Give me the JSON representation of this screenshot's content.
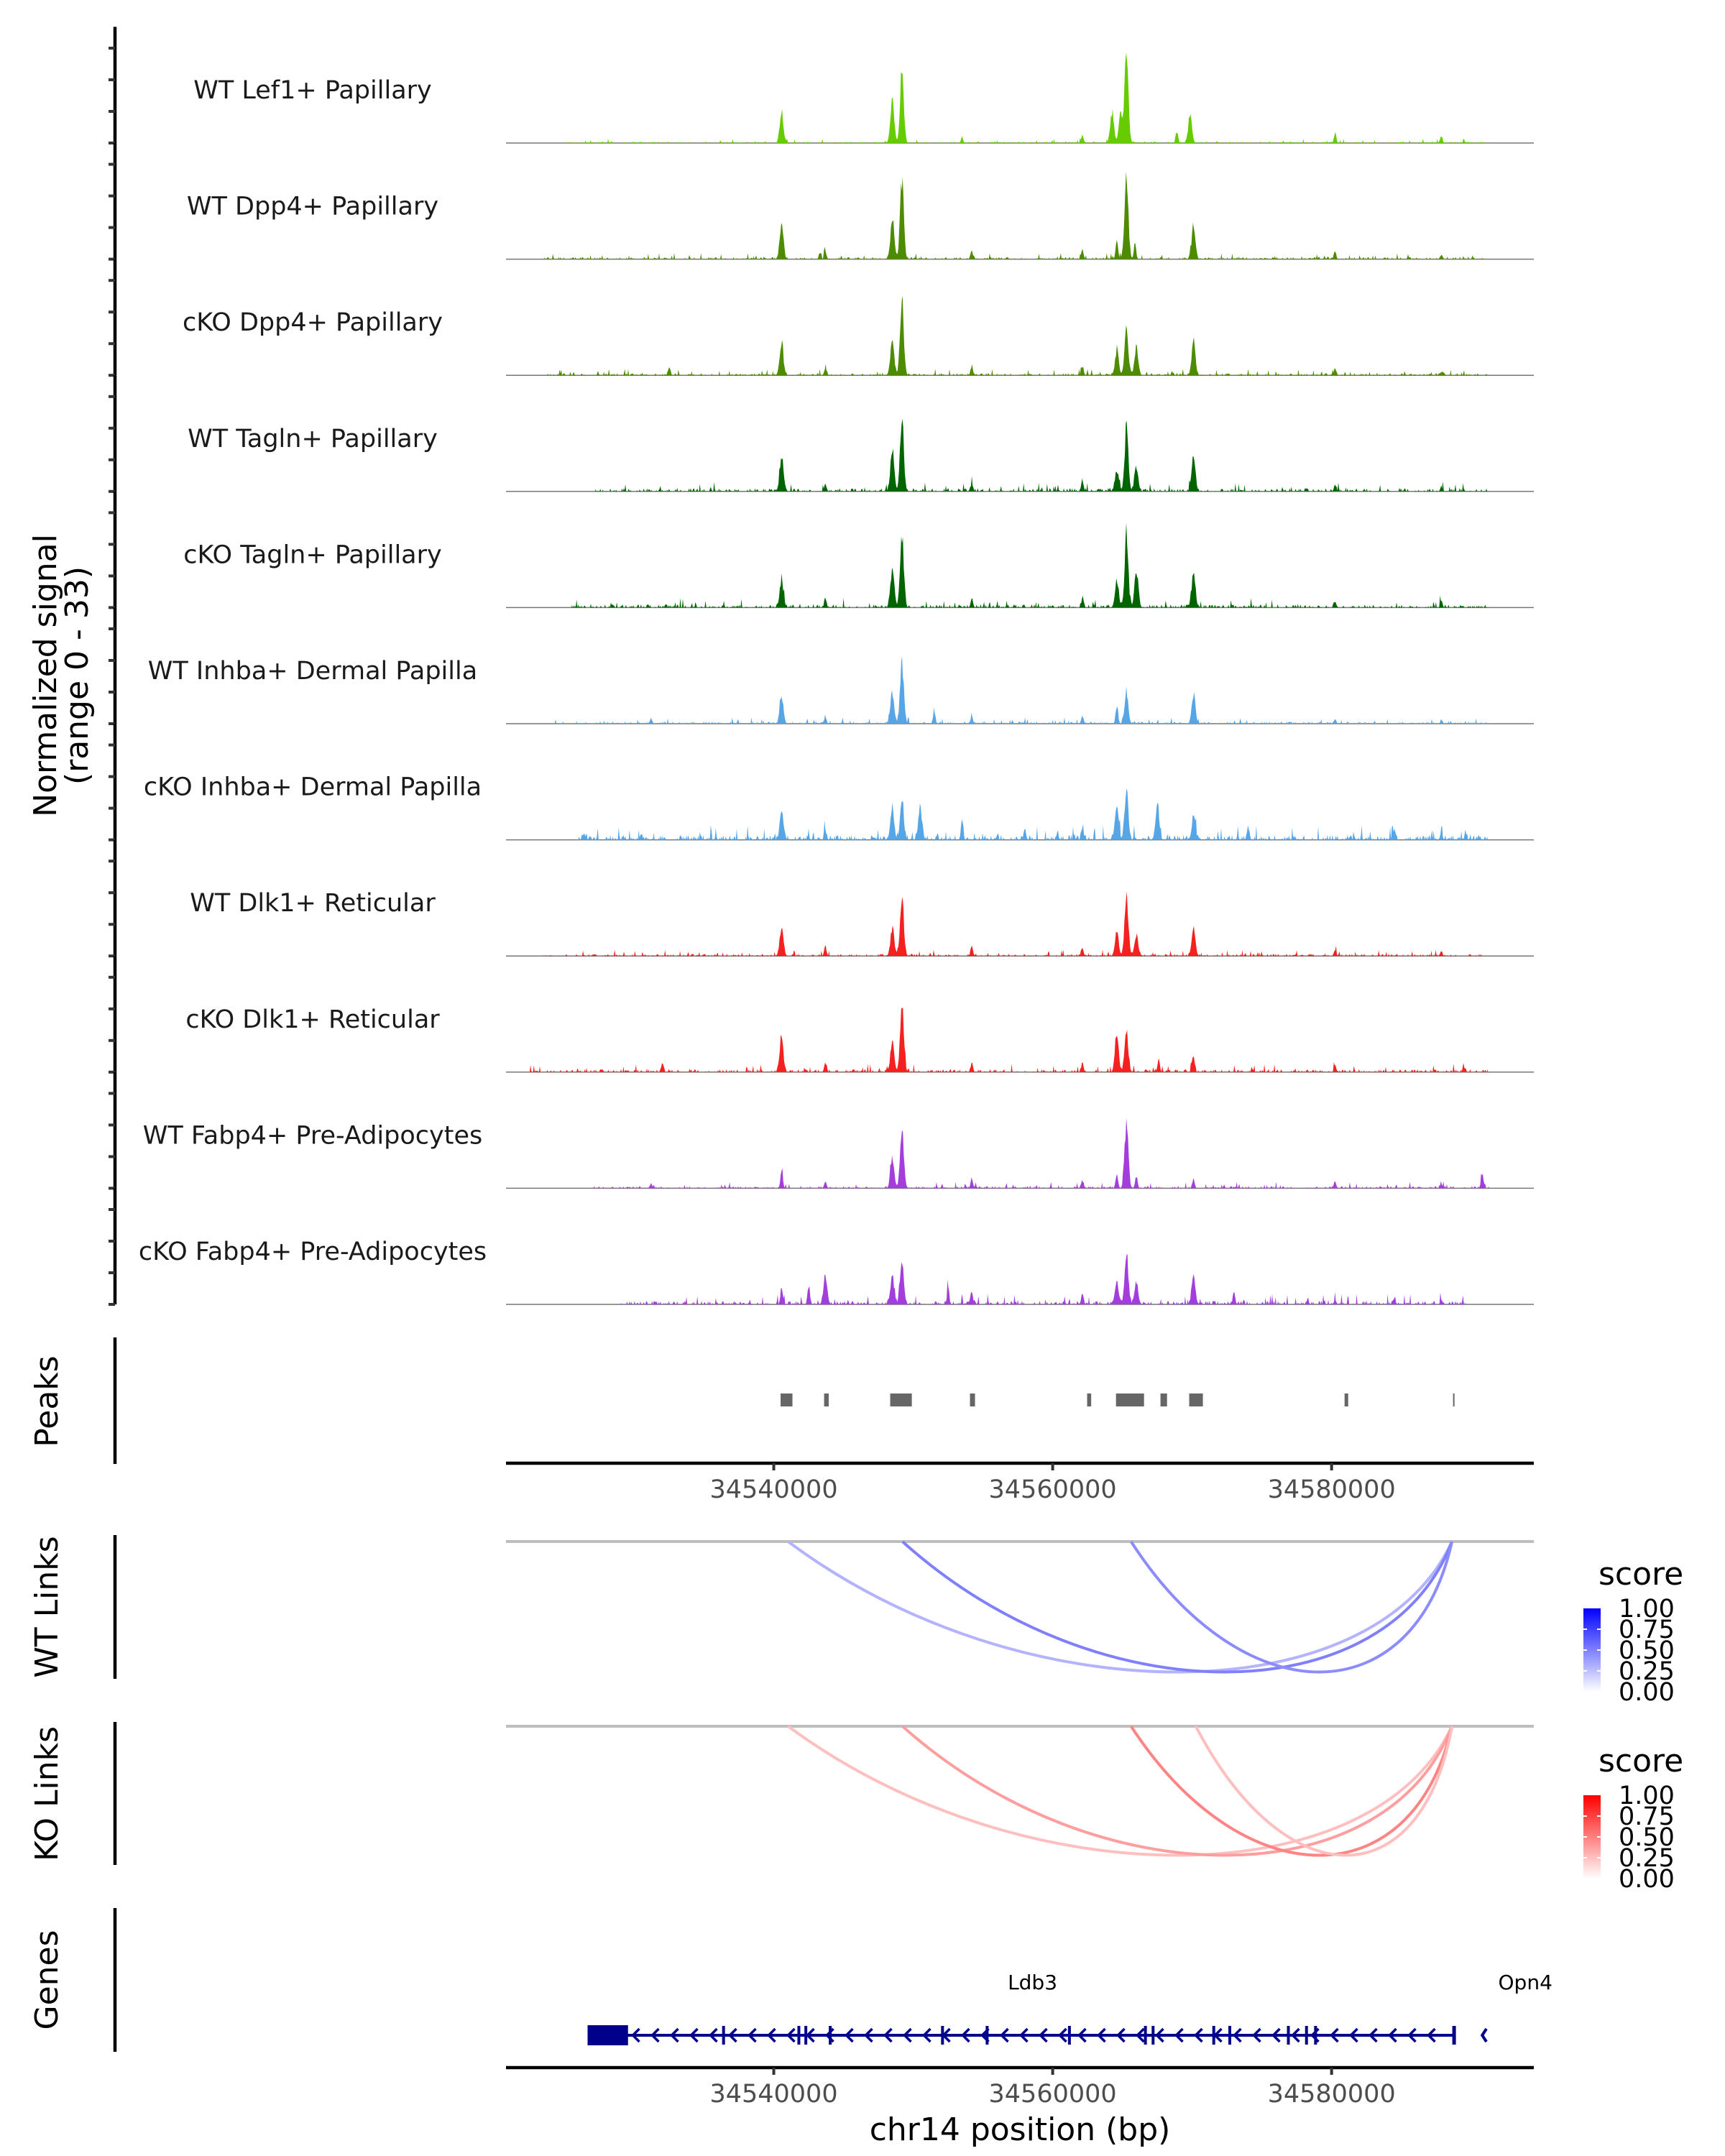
{
  "chart_data": {
    "type": "area",
    "title": "",
    "chromosome": "chr14",
    "xlabel": "chr14 position (bp)",
    "xlim": [
      34520800,
      34594500
    ],
    "x_ticks": [
      34540000,
      34560000,
      34580000
    ],
    "x_tick_labels": [
      "34540000",
      "34560000",
      "34580000"
    ],
    "signal_panel": {
      "ylabel_line1": "Normalized signal",
      "ylabel_line2": "(range 0 - 33)",
      "ylim": [
        0,
        33
      ],
      "tracks": [
        {
          "name": "WT Lef1+ Papillary",
          "color": "#66CC00",
          "peaks": [
            [
              34540560,
              10.5
            ],
            [
              34548500,
              14.4
            ],
            [
              34549190,
              23
            ],
            [
              34553500,
              1.5
            ],
            [
              34562130,
              2.5
            ],
            [
              34564260,
              9.9
            ],
            [
              34564870,
              9.1
            ],
            [
              34565290,
              29.7
            ],
            [
              34568900,
              3.5
            ],
            [
              34569850,
              8.7
            ],
            [
              34580250,
              3.1
            ],
            [
              34587870,
              1.9
            ]
          ],
          "background": 0.4,
          "data_range": [
            34525000,
            34591200
          ]
        },
        {
          "name": "WT Dpp4+ Papillary",
          "color": "#4D8C00",
          "peaks": [
            [
              34540560,
              12
            ],
            [
              34543700,
              2.5
            ],
            [
              34548500,
              13
            ],
            [
              34549190,
              26
            ],
            [
              34554200,
              2.5
            ],
            [
              34562130,
              3
            ],
            [
              34564600,
              6
            ],
            [
              34565290,
              27
            ],
            [
              34565900,
              5
            ],
            [
              34570100,
              11
            ],
            [
              34580250,
              2
            ],
            [
              34587870,
              1.5
            ]
          ],
          "background": 0.6,
          "data_range": [
            34523500,
            34591200
          ]
        },
        {
          "name": "cKO Dpp4+ Papillary",
          "color": "#4D8C00",
          "peaks": [
            [
              34532500,
              2.5
            ],
            [
              34540560,
              10
            ],
            [
              34543700,
              2.5
            ],
            [
              34548500,
              12
            ],
            [
              34549190,
              24
            ],
            [
              34554200,
              3
            ],
            [
              34562130,
              3
            ],
            [
              34564600,
              8
            ],
            [
              34565290,
              16
            ],
            [
              34566000,
              9
            ],
            [
              34570100,
              11
            ],
            [
              34580250,
              2
            ],
            [
              34587870,
              1
            ]
          ],
          "background": 0.6,
          "data_range": [
            34523500,
            34591200
          ]
        },
        {
          "name": "WT Tagln+ Papillary",
          "color": "#006400",
          "peaks": [
            [
              34540560,
              12
            ],
            [
              34543700,
              2.5
            ],
            [
              34548500,
              14
            ],
            [
              34549190,
              24
            ],
            [
              34554200,
              2.5
            ],
            [
              34562130,
              3.5
            ],
            [
              34564600,
              7
            ],
            [
              34565290,
              20
            ],
            [
              34566000,
              8
            ],
            [
              34570100,
              11
            ],
            [
              34580250,
              2
            ],
            [
              34587870,
              1.2
            ]
          ],
          "background": 0.9,
          "data_range": [
            34527200,
            34591200
          ]
        },
        {
          "name": "cKO Tagln+ Papillary",
          "color": "#006400",
          "peaks": [
            [
              34540560,
              9
            ],
            [
              34543700,
              2.5
            ],
            [
              34548500,
              12
            ],
            [
              34549190,
              24
            ],
            [
              34554200,
              3
            ],
            [
              34562130,
              3
            ],
            [
              34564600,
              9
            ],
            [
              34565290,
              23
            ],
            [
              34566000,
              12
            ],
            [
              34570100,
              11
            ],
            [
              34580250,
              2
            ],
            [
              34587870,
              1.5
            ]
          ],
          "background": 0.9,
          "data_range": [
            34525500,
            34591200
          ]
        },
        {
          "name": "WT Inhba+ Dermal Papilla",
          "color": "#56A5E6",
          "peaks": [
            [
              34531200,
              1.5
            ],
            [
              34540560,
              9
            ],
            [
              34543700,
              2
            ],
            [
              34548500,
              10
            ],
            [
              34549190,
              20
            ],
            [
              34551500,
              4
            ],
            [
              34554200,
              2.5
            ],
            [
              34562130,
              2.5
            ],
            [
              34564600,
              6
            ],
            [
              34565290,
              10
            ],
            [
              34570100,
              9
            ],
            [
              34580250,
              1.5
            ],
            [
              34587870,
              1
            ]
          ],
          "background": 0.6,
          "data_range": [
            34524300,
            34591200
          ]
        },
        {
          "name": "cKO Inhba+ Dermal Papilla",
          "color": "#56A5E6",
          "peaks": [
            [
              34526400,
              1.8
            ],
            [
              34530500,
              2
            ],
            [
              34540560,
              9
            ],
            [
              34543700,
              3
            ],
            [
              34548500,
              10
            ],
            [
              34549190,
              13
            ],
            [
              34550500,
              10
            ],
            [
              34553500,
              6
            ],
            [
              34558000,
              4
            ],
            [
              34562130,
              4
            ],
            [
              34564600,
              10
            ],
            [
              34565290,
              16
            ],
            [
              34567500,
              11
            ],
            [
              34570100,
              7
            ],
            [
              34574000,
              4
            ],
            [
              34584500,
              3.5
            ],
            [
              34587870,
              2.5
            ]
          ],
          "background": 1.4,
          "data_range": [
            34526000,
            34591200
          ]
        },
        {
          "name": "WT Dlk1+ Reticular",
          "color": "#F52020",
          "peaks": [
            [
              34540560,
              9
            ],
            [
              34543700,
              3
            ],
            [
              34548500,
              9
            ],
            [
              34549190,
              19
            ],
            [
              34554200,
              3
            ],
            [
              34562130,
              2.5
            ],
            [
              34564600,
              8
            ],
            [
              34565290,
              20
            ],
            [
              34566000,
              7
            ],
            [
              34570100,
              9
            ],
            [
              34580250,
              2
            ],
            [
              34587870,
              1
            ]
          ],
          "background": 0.6,
          "data_range": [
            34523500,
            34590800
          ]
        },
        {
          "name": "cKO Dlk1+ Reticular",
          "color": "#F52020",
          "peaks": [
            [
              34532000,
              2.5
            ],
            [
              34540560,
              10
            ],
            [
              34543700,
              3
            ],
            [
              34548500,
              10
            ],
            [
              34549190,
              22
            ],
            [
              34554200,
              3
            ],
            [
              34562130,
              3
            ],
            [
              34564600,
              13
            ],
            [
              34565290,
              13
            ],
            [
              34567600,
              4
            ],
            [
              34570100,
              6
            ],
            [
              34580250,
              2
            ],
            [
              34589500,
              1.5
            ]
          ],
          "background": 0.8,
          "data_range": [
            34522500,
            34591200
          ]
        },
        {
          "name": "WT Fabp4+ Pre-Adipocytes",
          "color": "#A33DDB",
          "peaks": [
            [
              34531200,
              1.5
            ],
            [
              34540560,
              6
            ],
            [
              34543700,
              2.5
            ],
            [
              34548500,
              10
            ],
            [
              34549190,
              20
            ],
            [
              34554200,
              3
            ],
            [
              34562130,
              2.5
            ],
            [
              34564600,
              5
            ],
            [
              34565290,
              21
            ],
            [
              34566000,
              4
            ],
            [
              34570100,
              3
            ],
            [
              34580250,
              2
            ],
            [
              34587870,
              1.5
            ],
            [
              34590800,
              5
            ]
          ],
          "background": 0.6,
          "data_range": [
            34527000,
            34591300
          ]
        },
        {
          "name": "cKO Fabp4+ Pre-Adipocytes",
          "color": "#A33DDB",
          "peaks": [
            [
              34540560,
              5
            ],
            [
              34542500,
              6
            ],
            [
              34543700,
              9
            ],
            [
              34548500,
              9
            ],
            [
              34549190,
              14
            ],
            [
              34552500,
              5
            ],
            [
              34554200,
              4
            ],
            [
              34562130,
              4
            ],
            [
              34564600,
              7
            ],
            [
              34565290,
              16
            ],
            [
              34566000,
              7
            ],
            [
              34570100,
              9
            ],
            [
              34573000,
              4
            ],
            [
              34580250,
              1.5
            ],
            [
              34584500,
              2
            ],
            [
              34587870,
              1.5
            ]
          ],
          "background": 1.0,
          "data_range": [
            34529000,
            34589600
          ]
        }
      ]
    },
    "peaks_panel": {
      "label": "Peaks",
      "color": "#666666",
      "regions": [
        [
          34540490,
          34541340
        ],
        [
          34543610,
          34543940
        ],
        [
          34548350,
          34549900
        ],
        [
          34554070,
          34554430
        ],
        [
          34562470,
          34562760
        ],
        [
          34564540,
          34566550
        ],
        [
          34567730,
          34568200
        ],
        [
          34569790,
          34570770
        ],
        [
          34580930,
          34581190
        ],
        [
          34588710,
          34588810
        ]
      ]
    },
    "links_panels": [
      {
        "label": "WT Links",
        "low_color": "#FFFFFF",
        "high_color": "#0000FF",
        "legend_title": "score",
        "legend_ticks": [
          "1.00",
          "0.75",
          "0.50",
          "0.25",
          "0.00"
        ],
        "links": [
          {
            "start": 34541030,
            "end": 34588630,
            "score": 0.3
          },
          {
            "start": 34549230,
            "end": 34588630,
            "score": 0.5
          },
          {
            "start": 34565620,
            "end": 34588630,
            "score": 0.45
          }
        ]
      },
      {
        "label": "KO Links",
        "low_color": "#FFFFFF",
        "high_color": "#FF0000",
        "legend_title": "score",
        "legend_ticks": [
          "1.00",
          "0.75",
          "0.50",
          "0.25",
          "0.00"
        ],
        "links": [
          {
            "start": 34541030,
            "end": 34588630,
            "score": 0.25
          },
          {
            "start": 34549230,
            "end": 34588630,
            "score": 0.38
          },
          {
            "start": 34565620,
            "end": 34588630,
            "score": 0.48
          },
          {
            "start": 34570260,
            "end": 34588630,
            "score": 0.25
          }
        ]
      }
    ],
    "genes_panel": {
      "label": "Genes",
      "color": "#00008B",
      "genes": [
        {
          "name": "Ldb3",
          "strand": "-",
          "start": 34526650,
          "end": 34588810,
          "utr_blocks": [
            [
              34526650,
              34529550
            ]
          ],
          "exons": [
            34536400,
            34541800,
            34542300,
            34544050,
            34552100,
            34555300,
            34561200,
            34566650,
            34567200,
            34571550,
            34572700,
            34576900,
            34578200,
            34578850
          ]
        },
        {
          "name": "Opn4",
          "strand": "-",
          "start": 34590800,
          "end": 34591100,
          "utr_blocks": [],
          "exons": []
        }
      ]
    }
  }
}
